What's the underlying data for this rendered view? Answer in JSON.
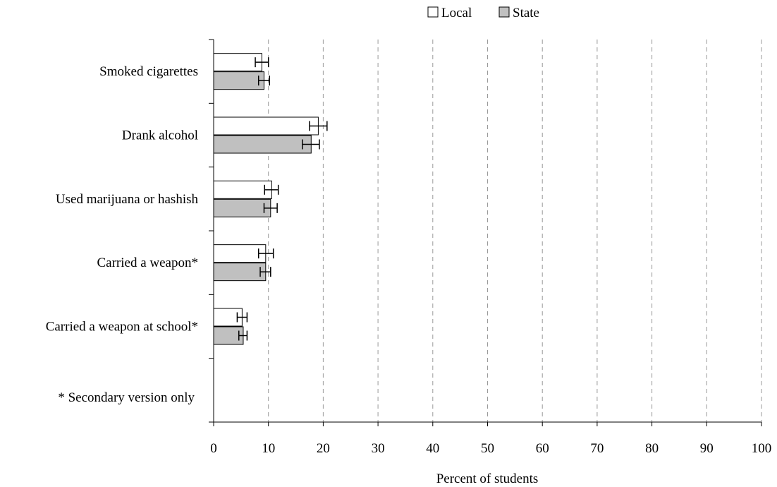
{
  "chart_data": {
    "type": "bar",
    "orientation": "horizontal",
    "categories": [
      "Smoked cigarettes",
      "Drank alcohol",
      "Used marijuana or hashish",
      "Carried a weapon*",
      "Carried a weapon at school*"
    ],
    "series": [
      {
        "name": "Local",
        "color": "#ffffff",
        "values": [
          8.8,
          19.1,
          10.6,
          9.5,
          5.2
        ],
        "error_low": [
          7.6,
          17.5,
          9.3,
          8.2,
          4.3
        ],
        "error_high": [
          10.0,
          20.7,
          11.8,
          10.9,
          6.1
        ]
      },
      {
        "name": "State",
        "color": "#c0c0c0",
        "values": [
          9.2,
          17.8,
          10.4,
          9.5,
          5.4
        ],
        "error_low": [
          8.2,
          16.2,
          9.2,
          8.5,
          4.6
        ],
        "error_high": [
          10.2,
          19.3,
          11.6,
          10.4,
          6.1
        ]
      }
    ],
    "xlabel": "Percent of students",
    "ylabel": "",
    "xlim": [
      0,
      100
    ],
    "xticks": [
      "0",
      "10",
      "20",
      "30",
      "40",
      "50",
      "60",
      "70",
      "80",
      "90",
      "100"
    ],
    "grid": "vertical-dashed",
    "legend": "top-center",
    "note": "* Secondary version only"
  }
}
